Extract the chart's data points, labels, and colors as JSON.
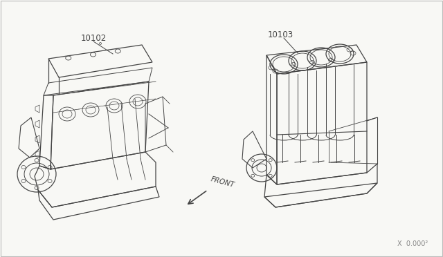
{
  "background_color": "#ffffff",
  "border_color": "#aaaaaa",
  "part_label_1": "10102",
  "part_label_2": "10103",
  "front_label": "FRONT",
  "watermark": "X  0.000²",
  "line_color": "#444444",
  "label_color": "#444444",
  "fig_width": 6.4,
  "fig_height": 3.72,
  "dpi": 100,
  "bg_fill": "#f8f8f5"
}
